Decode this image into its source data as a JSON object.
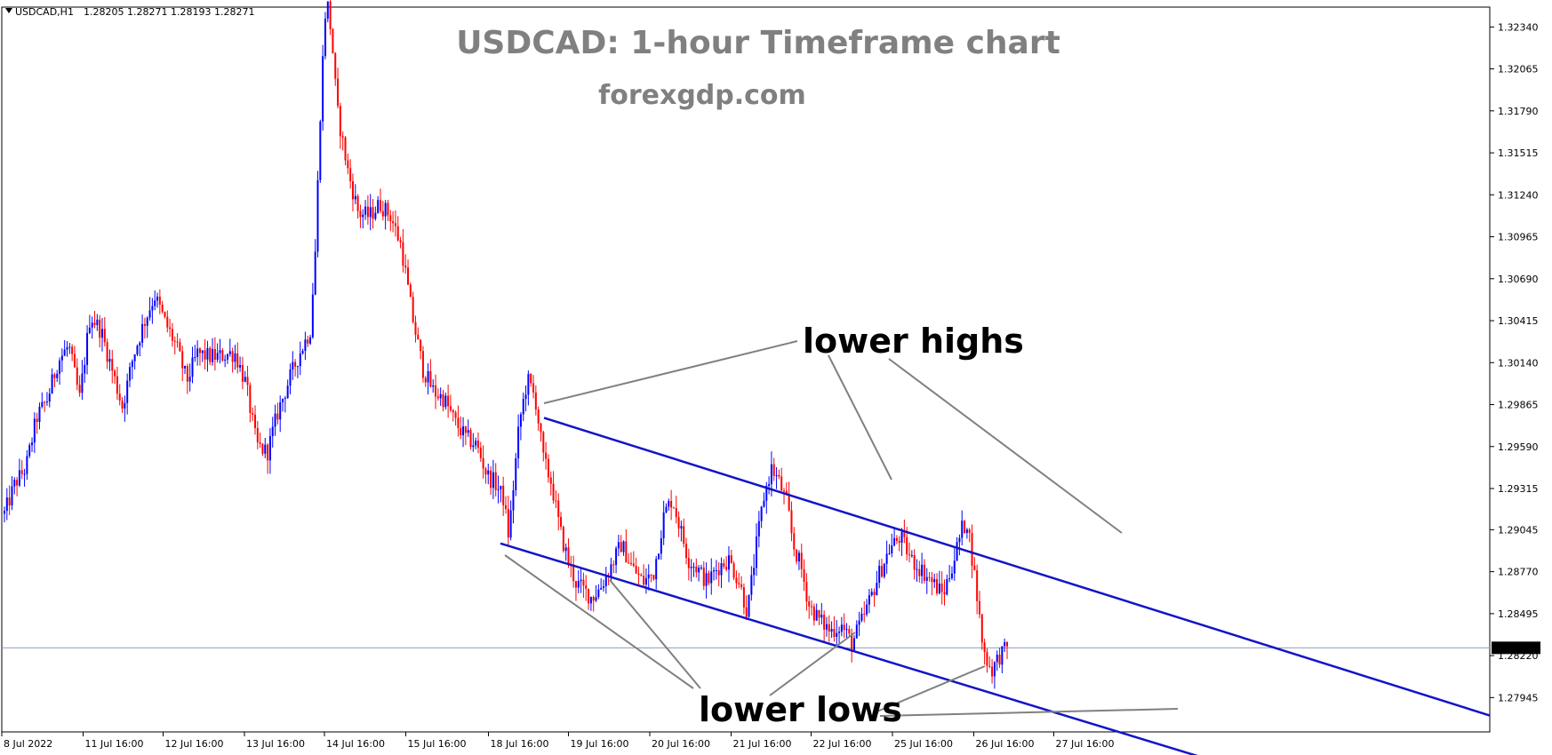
{
  "header": {
    "symbol_label": "USDCAD,H1",
    "ohlc": "1.28205 1.28271 1.28193 1.28271"
  },
  "chart_data": {
    "type": "candlestick",
    "title": "USDCAD: 1-hour Timeframe chart",
    "subtitle": "forexgdp.com",
    "current_price": "1.28271",
    "ylim": [
      1.2772,
      1.3247
    ],
    "y_ticks": [
      "1.32340",
      "1.32065",
      "1.31790",
      "1.31515",
      "1.31240",
      "1.30965",
      "1.30690",
      "1.30415",
      "1.30140",
      "1.29865",
      "1.29590",
      "1.29315",
      "1.29045",
      "1.28770",
      "1.28495",
      "1.28220",
      "1.27945"
    ],
    "x_labels": [
      "8 Jul 2022",
      "11 Jul 16:00",
      "12 Jul 16:00",
      "13 Jul 16:00",
      "14 Jul 16:00",
      "15 Jul 16:00",
      "18 Jul 16:00",
      "19 Jul 16:00",
      "20 Jul 16:00",
      "21 Jul 16:00",
      "22 Jul 16:00",
      "25 Jul 16:00",
      "26 Jul 16:00",
      "27 Jul 16:00"
    ],
    "path_points": [
      [
        0,
        1.2915
      ],
      [
        4,
        1.2935
      ],
      [
        8,
        1.2945
      ],
      [
        12,
        1.2978
      ],
      [
        16,
        1.299
      ],
      [
        20,
        1.3015
      ],
      [
        24,
        1.3025
      ],
      [
        28,
        1.299
      ],
      [
        32,
        1.3045
      ],
      [
        36,
        1.3035
      ],
      [
        40,
        1.301
      ],
      [
        44,
        1.2985
      ],
      [
        48,
        1.3018
      ],
      [
        52,
        1.304
      ],
      [
        56,
        1.3058
      ],
      [
        60,
        1.304
      ],
      [
        64,
        1.3025
      ],
      [
        68,
        1.3002
      ],
      [
        72,
        1.302
      ],
      [
        76,
        1.3018
      ],
      [
        80,
        1.3018
      ],
      [
        84,
        1.302
      ],
      [
        86,
        1.302
      ],
      [
        90,
        1.3
      ],
      [
        94,
        1.296
      ],
      [
        98,
        1.2955
      ],
      [
        102,
        1.2982
      ],
      [
        106,
        1.3002
      ],
      [
        110,
        1.302
      ],
      [
        114,
        1.3035
      ],
      [
        116,
        1.309
      ],
      [
        118,
        1.319
      ],
      [
        120,
        1.3255
      ],
      [
        122,
        1.3228
      ],
      [
        124,
        1.318
      ],
      [
        128,
        1.314
      ],
      [
        132,
        1.3112
      ],
      [
        136,
        1.311
      ],
      [
        140,
        1.3118
      ],
      [
        144,
        1.311
      ],
      [
        148,
        1.309
      ],
      [
        152,
        1.3045
      ],
      [
        156,
        1.301
      ],
      [
        160,
        1.2995
      ],
      [
        164,
        1.299
      ],
      [
        168,
        1.2975
      ],
      [
        172,
        1.2965
      ],
      [
        176,
        1.296
      ],
      [
        180,
        1.294
      ],
      [
        183,
        1.2935
      ],
      [
        186,
        1.2925
      ],
      [
        188,
        1.29
      ],
      [
        192,
        1.2975
      ],
      [
        195,
        1.3003
      ],
      [
        198,
        1.299
      ],
      [
        201,
        1.295
      ],
      [
        204,
        1.2935
      ],
      [
        207,
        1.2905
      ],
      [
        210,
        1.2885
      ],
      [
        213,
        1.287
      ],
      [
        216,
        1.2865
      ],
      [
        219,
        1.286
      ],
      [
        222,
        1.2866
      ],
      [
        226,
        1.288
      ],
      [
        230,
        1.2895
      ],
      [
        234,
        1.288
      ],
      [
        238,
        1.287
      ],
      [
        242,
        1.2876
      ],
      [
        246,
        1.2915
      ],
      [
        249,
        1.2925
      ],
      [
        252,
        1.2905
      ],
      [
        255,
        1.2885
      ],
      [
        258,
        1.288
      ],
      [
        262,
        1.287
      ],
      [
        266,
        1.288
      ],
      [
        270,
        1.2885
      ],
      [
        274,
        1.287
      ],
      [
        277,
        1.285
      ],
      [
        280,
        1.289
      ],
      [
        283,
        1.2925
      ],
      [
        286,
        1.2945
      ],
      [
        289,
        1.2935
      ],
      [
        292,
        1.292
      ],
      [
        294,
        1.2895
      ],
      [
        297,
        1.288
      ],
      [
        300,
        1.2855
      ],
      [
        304,
        1.2845
      ],
      [
        308,
        1.2838
      ],
      [
        312,
        1.2842
      ],
      [
        316,
        1.283
      ],
      [
        320,
        1.2846
      ],
      [
        323,
        1.286
      ],
      [
        326,
        1.2875
      ],
      [
        330,
        1.2892
      ],
      [
        334,
        1.29
      ],
      [
        338,
        1.2885
      ],
      [
        342,
        1.2878
      ],
      [
        346,
        1.287
      ],
      [
        350,
        1.2862
      ],
      [
        354,
        1.2885
      ],
      [
        357,
        1.2905
      ],
      [
        359,
        1.291
      ],
      [
        362,
        1.287
      ],
      [
        365,
        1.2825
      ],
      [
        368,
        1.2812
      ],
      [
        371,
        1.2822
      ],
      [
        374,
        1.2827
      ]
    ],
    "upper_line": [
      [
        181,
        1.2989
      ],
      [
        425,
        1.2854
      ]
    ],
    "lower_line": [
      [
        171,
        1.2903
      ],
      [
        393,
        1.2784
      ]
    ],
    "annotations": [
      "lower highs",
      "lower lows"
    ],
    "colors": {
      "bull": "#0000ff",
      "bear": "#ff0000",
      "channel": "#1414c8",
      "pointer": "#808080",
      "price_line": "#8aa0b4"
    }
  }
}
